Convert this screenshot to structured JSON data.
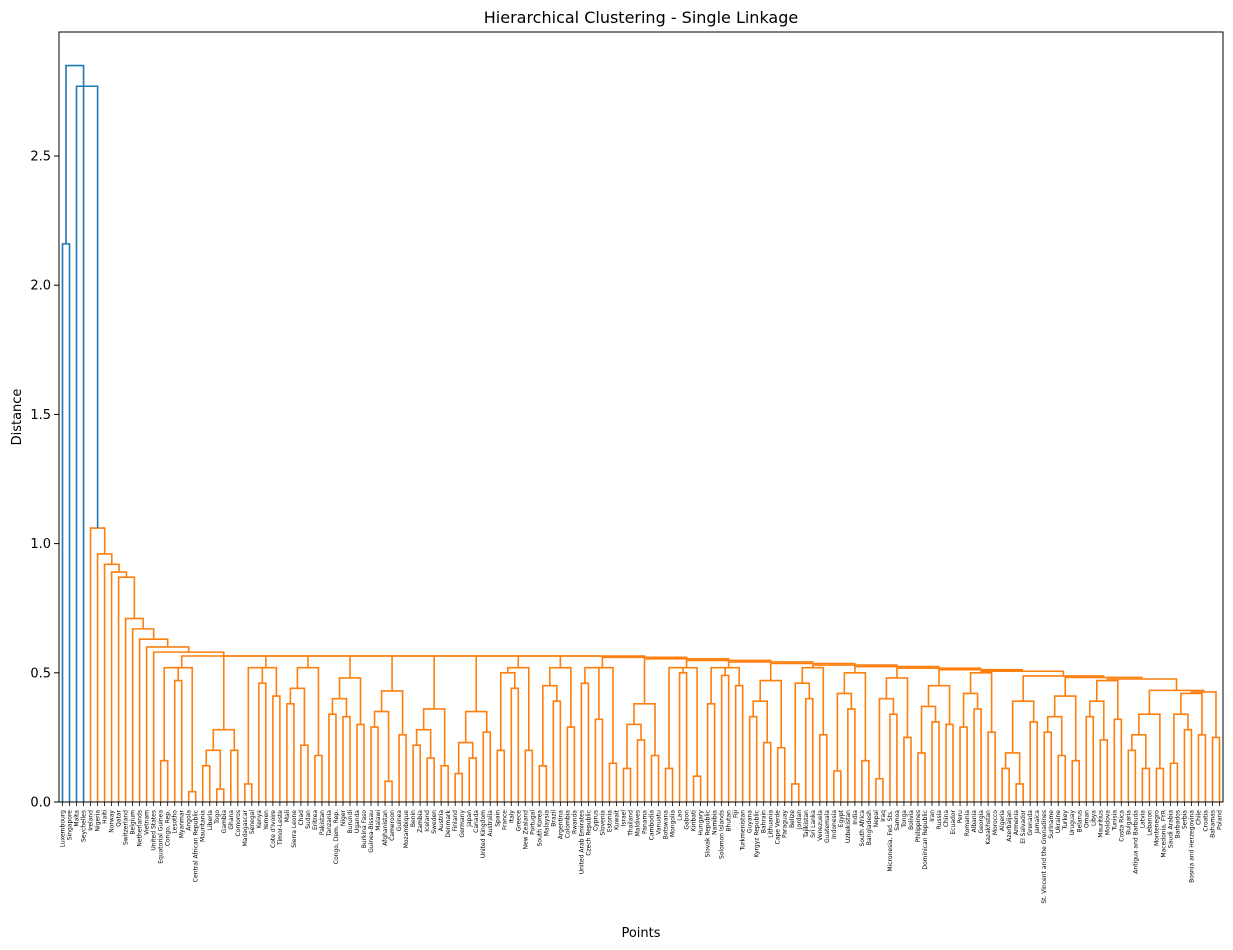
{
  "chart_data": {
    "type": "dendrogram",
    "title": "Hierarchical Clustering - Single Linkage",
    "xlabel": "Points",
    "ylabel": "Distance",
    "ylim": [
      0,
      2.98
    ],
    "yticks": [
      0.0,
      0.5,
      1.0,
      1.5,
      2.0,
      2.5
    ],
    "ytick_labels": [
      "0.0",
      "0.5",
      "1.0",
      "1.5",
      "2.0",
      "2.5"
    ],
    "colors": {
      "above_threshold": "#1f77b4",
      "cluster": "#ff7f0e"
    },
    "leaves": [
      "Luxembourg",
      "Singapore",
      "Malta",
      "Seychelles",
      "Ireland",
      "Nigeria",
      "Haiti",
      "Norway",
      "Qatar",
      "Switzerland",
      "Belgium",
      "Netherlands",
      "Vietnam",
      "United States",
      "Equatorial Guinea",
      "Congo, Rep.",
      "Lesotho",
      "Myanmar",
      "Angola",
      "Central African Republic",
      "Mauritania",
      "Liberia",
      "Togo",
      "Gambia",
      "Ghana",
      "Comoros",
      "Madagascar",
      "Senegal",
      "Kenya",
      "Yemen",
      "Cote d'Ivoire",
      "Timor-Leste",
      "Mali",
      "Sierra Leone",
      "Chad",
      "Sudan",
      "Eritrea",
      "Pakistan",
      "Tanzania",
      "Congo, Dem. Rep.",
      "Niger",
      "Burundi",
      "Uganda",
      "Burkina Faso",
      "Guinea-Bissau",
      "Malawi",
      "Afghanistan",
      "Cameroon",
      "Guinea",
      "Mozambique",
      "Benin",
      "Zambia",
      "Iceland",
      "Sweden",
      "Austria",
      "Denmark",
      "Finland",
      "Germany",
      "Japan",
      "Canada",
      "United Kingdom",
      "Australia",
      "Spain",
      "France",
      "Italy",
      "Greece",
      "New Zealand",
      "Portugal",
      "South Korea",
      "Malaysia",
      "Brazil",
      "Argentina",
      "Colombia",
      "Rwanda",
      "United Arab Emirates",
      "Czech Republic",
      "Cyprus",
      "Slovenia",
      "Estonia",
      "Kuwait",
      "Israel",
      "Thailand",
      "Maldives",
      "Panama",
      "Cambodia",
      "Vanuatu",
      "Botswana",
      "Mongolia",
      "Lao",
      "Gabon",
      "Kiribati",
      "Hungary",
      "Slovak Republic",
      "Namibia",
      "Solomon Islands",
      "Bhutan",
      "Fiji",
      "Turkmenistan",
      "Guyana",
      "Kyrgyz Republic",
      "Bahrain",
      "Lithuania",
      "Cape Verde",
      "Paraguay",
      "Belize",
      "Jordan",
      "Tajikistan",
      "Sri Lanka",
      "Venezuela",
      "Guatemala",
      "Indonesia",
      "Egypt",
      "Uzbekistan",
      "India",
      "South Africa",
      "Bangladesh",
      "Nepal",
      "Iraq",
      "Micronesia, Fed. Sts.",
      "Samoa",
      "Tonga",
      "Bolivia",
      "Philippines",
      "Dominican Republic",
      "Iran",
      "Russia",
      "China",
      "Ecuador",
      "Peru",
      "Romania",
      "Albania",
      "Georgia",
      "Kazakhstan",
      "Morocco",
      "Algeria",
      "Azerbaijan",
      "Armenia",
      "El Salvador",
      "Grenada",
      "Jamaica",
      "St. Vincent and the Grenadines",
      "Suriname",
      "Ukraine",
      "Turkey",
      "Uruguay",
      "Belarus",
      "Oman",
      "Libya",
      "Mauritius",
      "Moldova",
      "Tunisia",
      "Costa Rica",
      "Bulgaria",
      "Antigua and Barbuda",
      "Latvia",
      "Lebanon",
      "Montenegro",
      "Macedonia, FYR",
      "Saudi Arabia",
      "Barbados",
      "Serbia",
      "Bosnia and Herzegovina",
      "Chile",
      "Croatia",
      "Bahamas",
      "Poland"
    ]
  }
}
